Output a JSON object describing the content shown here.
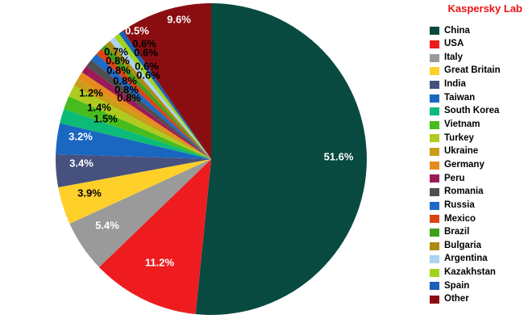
{
  "header": {
    "brand": "Kaspersky Lab",
    "brand_color": "#ee1111"
  },
  "chart_data": {
    "type": "pie",
    "start_angle_deg": 90,
    "direction": "clockwise",
    "legend_position": "right",
    "label_format": "one_decimal_percent",
    "background": "#ffffff",
    "series": [
      {
        "label": "China",
        "value": 51.6,
        "color": "#084a3f"
      },
      {
        "label": "USA",
        "value": 11.2,
        "color": "#ee1c1e"
      },
      {
        "label": "Italy",
        "value": 5.4,
        "color": "#9a9a9a"
      },
      {
        "label": "Great Britain",
        "value": 3.9,
        "color": "#ffd02a"
      },
      {
        "label": "India",
        "value": 3.4,
        "color": "#47517e"
      },
      {
        "label": "Taiwan",
        "value": 3.2,
        "color": "#1a67c1"
      },
      {
        "label": "South Korea",
        "value": 1.5,
        "color": "#0cbb78"
      },
      {
        "label": "Vietnam",
        "value": 1.4,
        "color": "#47bc1e"
      },
      {
        "label": "Turkey",
        "value": 1.2,
        "color": "#afcb20"
      },
      {
        "label": "Ukraine",
        "value": 0.8,
        "color": "#c99e16"
      },
      {
        "label": "Germany",
        "value": 0.8,
        "color": "#e78a1c"
      },
      {
        "label": "Peru",
        "value": 0.8,
        "color": "#9c1b56"
      },
      {
        "label": "Romania",
        "value": 0.8,
        "color": "#4f4f4f"
      },
      {
        "label": "Russia",
        "value": 0.8,
        "color": "#1e6ac8"
      },
      {
        "label": "Mexico",
        "value": 0.7,
        "color": "#dc4412"
      },
      {
        "label": "Brazil",
        "value": 0.6,
        "color": "#3fa01e"
      },
      {
        "label": "Bulgaria",
        "value": 0.6,
        "color": "#ad8b0f"
      },
      {
        "label": "Argentina",
        "value": 0.6,
        "color": "#abd3f2"
      },
      {
        "label": "Kazakhstan",
        "value": 0.6,
        "color": "#a0d41e"
      },
      {
        "label": "Spain",
        "value": 0.5,
        "color": "#1c5fb8"
      },
      {
        "label": "Other",
        "value": 9.6,
        "color": "#8a0e11"
      }
    ]
  }
}
